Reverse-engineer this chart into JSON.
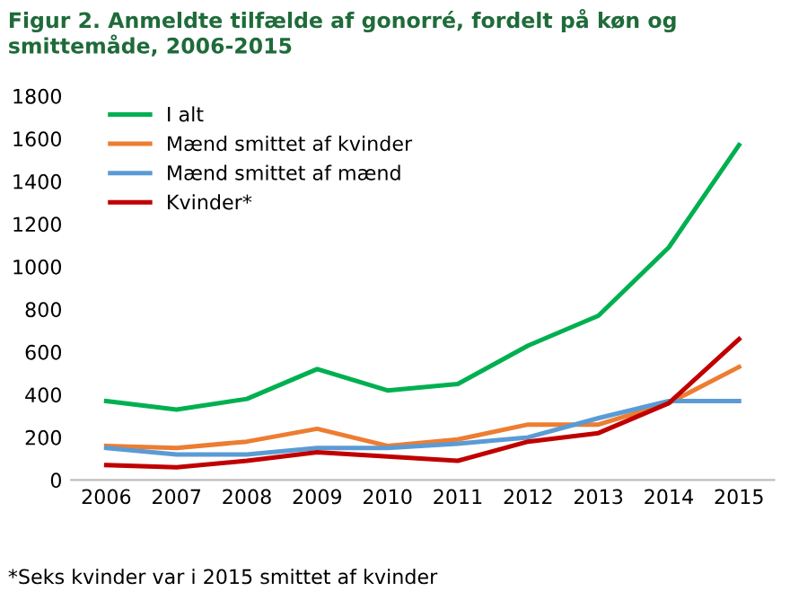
{
  "chart_data": {
    "type": "line",
    "title": "Figur 2. Anmeldte tilfælde af gonorré, fordelt på køn og smittemåde, 2006-2015",
    "categories": [
      "2006",
      "2007",
      "2008",
      "2009",
      "2010",
      "2011",
      "2012",
      "2013",
      "2014",
      "2015"
    ],
    "series": [
      {
        "name": "I alt",
        "color": "#00b050",
        "values": [
          370,
          330,
          380,
          520,
          420,
          450,
          630,
          770,
          1090,
          1570
        ]
      },
      {
        "name": "Mænd smittet af kvinder",
        "color": "#ed7d31",
        "values": [
          160,
          150,
          180,
          240,
          160,
          190,
          260,
          260,
          360,
          530
        ]
      },
      {
        "name": "Mænd smittet af mænd",
        "color": "#5b9bd5",
        "values": [
          150,
          120,
          120,
          150,
          150,
          170,
          200,
          290,
          370,
          370
        ]
      },
      {
        "name": "Kvinder*",
        "color": "#c00000",
        "values": [
          70,
          60,
          90,
          130,
          110,
          90,
          180,
          220,
          360,
          660
        ]
      }
    ],
    "ylim": [
      0,
      1800
    ],
    "yticks": [
      0,
      200,
      400,
      600,
      800,
      1000,
      1200,
      1400,
      1600,
      1800
    ],
    "grid": false,
    "legend": "top left",
    "marker": "none",
    "line_style": "solid",
    "annotations": [
      "*Seks kvinder var i 2015 smittet af kvinder"
    ]
  }
}
